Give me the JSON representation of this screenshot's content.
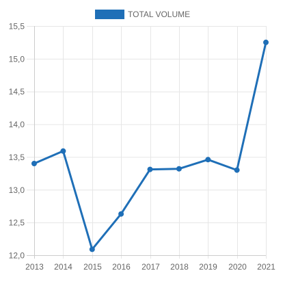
{
  "chart_data": {
    "type": "line",
    "title": "",
    "xlabel": "",
    "ylabel": "",
    "x": [
      "2013",
      "2014",
      "2015",
      "2016",
      "2017",
      "2018",
      "2019",
      "2020",
      "2021"
    ],
    "series": [
      {
        "name": "TOTAL VOLUME",
        "values": [
          13.4,
          13.59,
          12.09,
          12.63,
          13.31,
          13.32,
          13.46,
          13.3,
          15.25
        ],
        "color": "#1f6fb7"
      }
    ],
    "ylim": [
      12.0,
      15.5
    ],
    "ytick_values": [
      12.0,
      12.5,
      13.0,
      13.5,
      14.0,
      14.5,
      15.0,
      15.5
    ],
    "ytick_labels": [
      "12,0",
      "12,5",
      "13,0",
      "13,5",
      "14,0",
      "14,5",
      "15,0",
      "15,5"
    ],
    "grid": true,
    "legend_position": "top-center",
    "colors": {
      "grid": "#e6e6e6",
      "axis": "#cccccc",
      "tick_text": "#666666"
    }
  }
}
